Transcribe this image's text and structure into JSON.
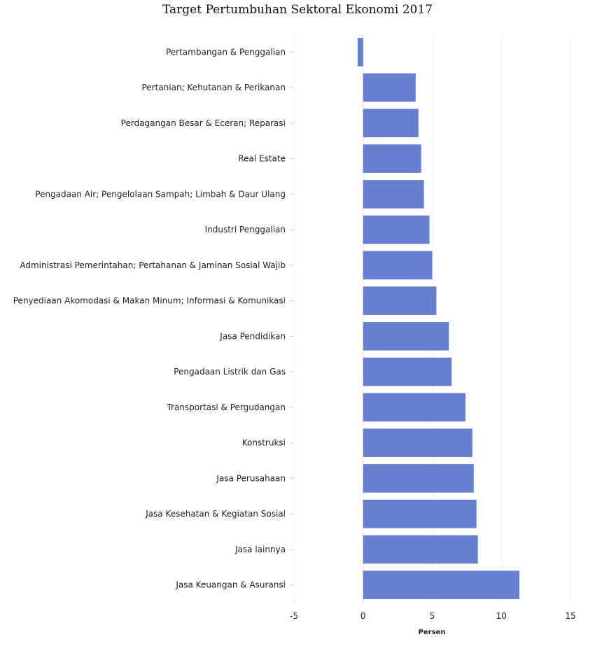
{
  "chart_data": {
    "type": "bar",
    "orientation": "horizontal",
    "title": "Target Pertumbuhan Sektoral Ekonomi 2017",
    "xlabel": "Persen",
    "ylabel": "",
    "xlim": [
      -5,
      15
    ],
    "xticks": [
      -5,
      0,
      5,
      10,
      15
    ],
    "grid": true,
    "bar_color": "#6680cf",
    "categories": [
      "Pertambangan & Penggalian",
      "Pertanian; Kehutanan & Perikanan",
      "Perdagangan Besar & Eceran; Reparasi ",
      "Real Estate",
      "Pengadaan Air; Pengelolaan Sampah; Limbah & Daur Ulang",
      "Industri Penggalian",
      "Administrasi Pemerintahan; Pertahanan & Jaminan Sosial Wajib",
      "Penyediaan Akomodasi & Makan Minum; Informasi & Komunikasi",
      "Jasa Pendidikan",
      "Pengadaan Listrik dan Gas",
      "Transportasi & Pergudangan",
      "Konstruksi",
      "Jasa Perusahaan",
      "Jasa Kesehatan & Kegiatan Sosial",
      "Jasa lainnya",
      "Jasa Keuangan & Asuransi"
    ],
    "values": [
      -0.4,
      3.8,
      4.0,
      4.2,
      4.4,
      4.8,
      5.0,
      5.3,
      6.2,
      6.4,
      7.4,
      7.9,
      8.0,
      8.2,
      8.3,
      11.3
    ]
  }
}
